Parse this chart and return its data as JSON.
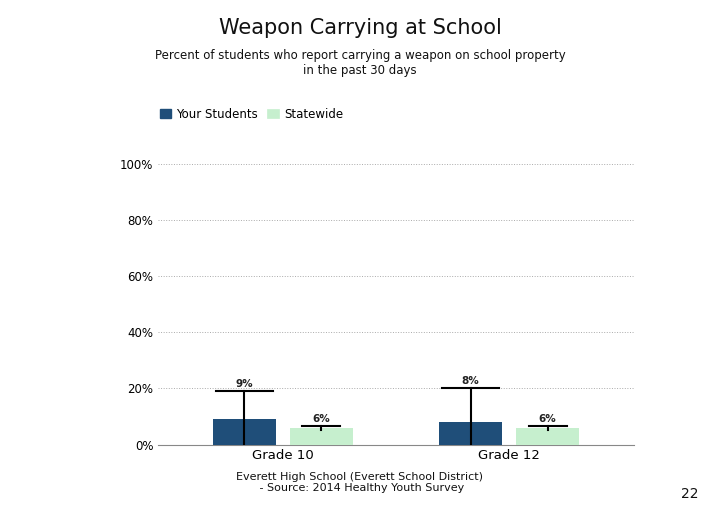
{
  "title": "Weapon Carrying at School",
  "subtitle": "Percent of students who report carrying a weapon on school property\nin the past 30 days",
  "footer": "Everett High School (Everett School District)\n - Source: 2014 Healthy Youth Survey",
  "categories": [
    "Grade 10",
    "Grade 12"
  ],
  "your_students_values": [
    9,
    8
  ],
  "statewide_values": [
    6,
    6
  ],
  "your_error_tops": [
    19,
    20
  ],
  "state_error_tops": [
    6.5,
    6.5
  ],
  "your_students_color": "#1F4E79",
  "statewide_color": "#C6EFCE",
  "error_bar_color": "#000000",
  "ylim": [
    0,
    100
  ],
  "yticks": [
    0,
    20,
    40,
    60,
    80,
    100
  ],
  "ytick_labels": [
    "0%",
    "20%",
    "40%",
    "60%",
    "80%",
    "100%"
  ],
  "legend_your_students": "Your Students",
  "legend_statewide": "Statewide",
  "bar_width": 0.28,
  "background_color": "#FFFFFF",
  "page_number": "22",
  "grid_color": "#AAAAAA",
  "label_fontsize": 7.5
}
